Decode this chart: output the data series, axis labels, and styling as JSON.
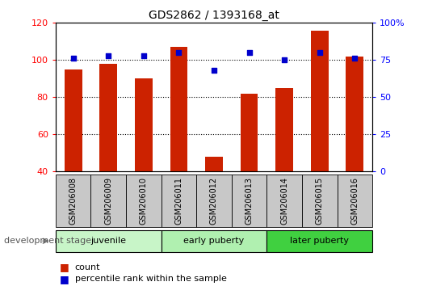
{
  "title": "GDS2862 / 1393168_at",
  "samples": [
    "GSM206008",
    "GSM206009",
    "GSM206010",
    "GSM206011",
    "GSM206012",
    "GSM206013",
    "GSM206014",
    "GSM206015",
    "GSM206016"
  ],
  "count_values": [
    95,
    98,
    90,
    107,
    48,
    82,
    85,
    116,
    102
  ],
  "percentile_values": [
    76,
    78,
    78,
    80,
    68,
    80,
    75,
    80,
    76
  ],
  "ylim_left": [
    40,
    120
  ],
  "ylim_right": [
    0,
    100
  ],
  "yticks_left": [
    40,
    60,
    80,
    100,
    120
  ],
  "yticks_right": [
    0,
    25,
    50,
    75,
    100
  ],
  "ytick_labels_right": [
    "0",
    "25",
    "50",
    "75",
    "100%"
  ],
  "groups": [
    {
      "label": "juvenile",
      "start": 0,
      "end": 3,
      "color": "#c8f5c8"
    },
    {
      "label": "early puberty",
      "start": 3,
      "end": 6,
      "color": "#b0f0b0"
    },
    {
      "label": "later puberty",
      "start": 6,
      "end": 9,
      "color": "#40d040"
    }
  ],
  "bar_color": "#CC2200",
  "dot_color": "#0000CC",
  "bar_width": 0.5,
  "legend_count_label": "count",
  "legend_percentile_label": "percentile rank within the sample",
  "xlabel_arrow": "development stage",
  "bg_plot": "#FFFFFF",
  "bg_xticklabel": "#C8C8C8",
  "spine_color": "#000000",
  "fig_width": 5.3,
  "fig_height": 3.54,
  "dpi": 100
}
